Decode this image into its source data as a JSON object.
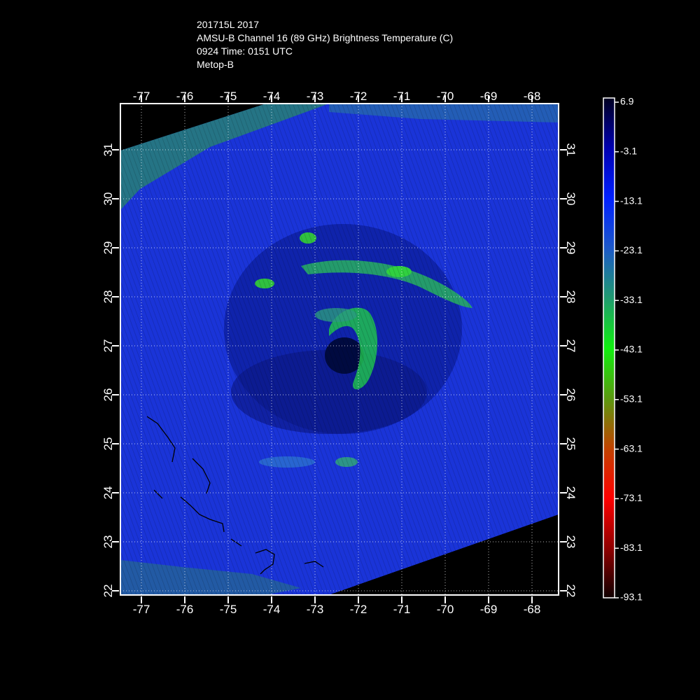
{
  "header": {
    "line1": "201715L 2017",
    "line2": "AMSU-B Channel 16 (89 GHz) Brightness Temperature (C)",
    "line3": "0924 Time: 0151 UTC",
    "line4": "Metop-B"
  },
  "map": {
    "lon_labels": [
      "-77",
      "-76",
      "-75",
      "-74",
      "-73",
      "-72",
      "-71",
      "-70",
      "-69",
      "-68"
    ],
    "lat_labels": [
      "31",
      "30",
      "29",
      "28",
      "27",
      "26",
      "25",
      "24",
      "23",
      "22"
    ],
    "lon_values": [
      -77,
      -76,
      -75,
      -74,
      -73,
      -72,
      -71,
      -70,
      -69,
      -68
    ],
    "lat_values": [
      31,
      30,
      29,
      28,
      27,
      26,
      25,
      24,
      23,
      22
    ],
    "lon_range": [
      -77.4,
      -67.4
    ],
    "lat_range": [
      21.8,
      31.9
    ],
    "grid": true,
    "grid_style": "dotted white",
    "background_swath_color": "#1830d8",
    "no_data_color": "#000000"
  },
  "colorbar": {
    "labels": [
      "6.9",
      "-3.1",
      "-13.1",
      "-23.1",
      "-33.1",
      "-43.1",
      "-53.1",
      "-63.1",
      "-73.1",
      "-83.1",
      "-93.1"
    ],
    "colors": [
      "#000030",
      "#0000c8",
      "#0020ff",
      "#2060c0",
      "#20a060",
      "#10f010",
      "#609010",
      "#c04000",
      "#ff0000",
      "#900000",
      "#200000"
    ],
    "units": "C"
  }
}
